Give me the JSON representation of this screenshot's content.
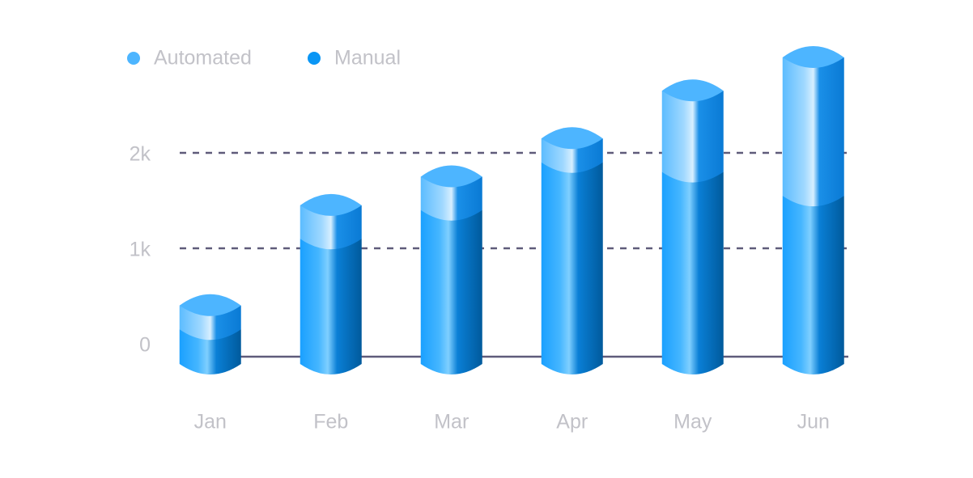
{
  "chart_data": {
    "type": "bar",
    "stacked": true,
    "categories": [
      "Jan",
      "Feb",
      "Mar",
      "Apr",
      "May",
      "Jun"
    ],
    "series": [
      {
        "name": "Automated",
        "color": "#4db5ff",
        "values": [
          250,
          350,
          350,
          250,
          850,
          1450
        ]
      },
      {
        "name": "Manual",
        "color": "#0a96f5",
        "values": [
          150,
          1100,
          1400,
          1900,
          1800,
          1550
        ]
      }
    ],
    "ylim": [
      0,
      3000
    ],
    "yticks": [
      {
        "value": 0,
        "label": "0"
      },
      {
        "value": 1000,
        "label": "1k"
      },
      {
        "value": 2000,
        "label": "2k"
      }
    ],
    "grid": true,
    "legend": "top-left"
  }
}
